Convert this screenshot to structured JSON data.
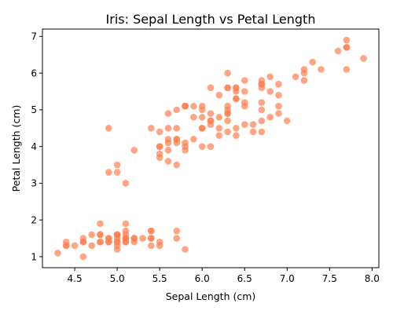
{
  "chart_data": {
    "type": "scatter",
    "title": "Iris: Sepal Length vs Petal Length",
    "xlabel": "Sepal Length (cm)",
    "ylabel": "Petal Length (cm)",
    "xlim": [
      4.12,
      8.08
    ],
    "ylim": [
      0.7,
      7.2
    ],
    "xticks": [
      "4.5",
      "5.0",
      "5.5",
      "6.0",
      "6.5",
      "7.0",
      "7.5",
      "8.0"
    ],
    "yticks": [
      "1",
      "2",
      "3",
      "4",
      "5",
      "6",
      "7"
    ],
    "grid": false,
    "marker_color": "#ff7f50",
    "marker_opacity": 0.7,
    "series": [
      {
        "points": [
          [
            5.1,
            1.4
          ],
          [
            4.9,
            1.4
          ],
          [
            4.7,
            1.3
          ],
          [
            4.6,
            1.5
          ],
          [
            5.0,
            1.4
          ],
          [
            5.4,
            1.7
          ],
          [
            4.6,
            1.4
          ],
          [
            5.0,
            1.5
          ],
          [
            4.4,
            1.4
          ],
          [
            4.9,
            1.5
          ],
          [
            5.4,
            1.5
          ],
          [
            4.8,
            1.6
          ],
          [
            4.8,
            1.4
          ],
          [
            4.3,
            1.1
          ],
          [
            5.8,
            1.2
          ],
          [
            5.7,
            1.5
          ],
          [
            5.4,
            1.3
          ],
          [
            5.1,
            1.4
          ],
          [
            5.7,
            1.7
          ],
          [
            5.1,
            1.5
          ],
          [
            5.4,
            1.7
          ],
          [
            5.1,
            1.5
          ],
          [
            4.6,
            1.0
          ],
          [
            5.1,
            1.7
          ],
          [
            4.8,
            1.9
          ],
          [
            5.0,
            1.6
          ],
          [
            5.0,
            1.6
          ],
          [
            5.2,
            1.5
          ],
          [
            5.2,
            1.4
          ],
          [
            4.7,
            1.6
          ],
          [
            4.8,
            1.6
          ],
          [
            5.4,
            1.5
          ],
          [
            5.2,
            1.5
          ],
          [
            5.5,
            1.4
          ],
          [
            4.9,
            1.5
          ],
          [
            5.0,
            1.2
          ],
          [
            5.5,
            1.3
          ],
          [
            4.9,
            1.4
          ],
          [
            4.4,
            1.3
          ],
          [
            5.1,
            1.5
          ],
          [
            5.0,
            1.3
          ],
          [
            4.5,
            1.3
          ],
          [
            4.4,
            1.3
          ],
          [
            5.0,
            1.6
          ],
          [
            5.1,
            1.9
          ],
          [
            4.8,
            1.4
          ],
          [
            5.1,
            1.6
          ],
          [
            4.6,
            1.4
          ],
          [
            5.3,
            1.5
          ],
          [
            5.0,
            1.4
          ],
          [
            7.0,
            4.7
          ],
          [
            6.4,
            4.5
          ],
          [
            6.9,
            4.9
          ],
          [
            5.5,
            4.0
          ],
          [
            6.5,
            4.6
          ],
          [
            5.7,
            4.5
          ],
          [
            6.3,
            4.7
          ],
          [
            4.9,
            3.3
          ],
          [
            6.6,
            4.6
          ],
          [
            5.2,
            3.9
          ],
          [
            5.0,
            3.5
          ],
          [
            5.9,
            4.2
          ],
          [
            6.0,
            4.0
          ],
          [
            6.1,
            4.7
          ],
          [
            5.6,
            3.6
          ],
          [
            6.7,
            4.4
          ],
          [
            5.6,
            4.5
          ],
          [
            5.8,
            4.1
          ],
          [
            6.2,
            4.5
          ],
          [
            5.6,
            3.9
          ],
          [
            5.9,
            4.8
          ],
          [
            6.1,
            4.0
          ],
          [
            6.3,
            4.9
          ],
          [
            6.1,
            4.7
          ],
          [
            6.4,
            4.3
          ],
          [
            6.6,
            4.4
          ],
          [
            6.8,
            4.8
          ],
          [
            6.7,
            5.0
          ],
          [
            6.0,
            4.5
          ],
          [
            5.7,
            3.5
          ],
          [
            5.5,
            3.8
          ],
          [
            5.5,
            3.7
          ],
          [
            5.8,
            3.9
          ],
          [
            6.0,
            5.1
          ],
          [
            5.4,
            4.5
          ],
          [
            6.0,
            4.5
          ],
          [
            6.7,
            4.7
          ],
          [
            6.3,
            4.4
          ],
          [
            5.6,
            4.1
          ],
          [
            5.5,
            4.0
          ],
          [
            5.5,
            4.4
          ],
          [
            6.1,
            4.6
          ],
          [
            5.8,
            4.0
          ],
          [
            5.0,
            3.3
          ],
          [
            5.6,
            4.2
          ],
          [
            5.7,
            4.2
          ],
          [
            5.7,
            4.2
          ],
          [
            6.2,
            4.3
          ],
          [
            5.1,
            3.0
          ],
          [
            5.7,
            4.1
          ],
          [
            6.3,
            6.0
          ],
          [
            5.8,
            5.1
          ],
          [
            7.1,
            5.9
          ],
          [
            6.3,
            5.6
          ],
          [
            6.5,
            5.8
          ],
          [
            7.6,
            6.6
          ],
          [
            4.9,
            4.5
          ],
          [
            7.3,
            6.3
          ],
          [
            6.7,
            5.8
          ],
          [
            7.2,
            6.1
          ],
          [
            6.5,
            5.1
          ],
          [
            6.4,
            5.3
          ],
          [
            6.8,
            5.5
          ],
          [
            5.7,
            5.0
          ],
          [
            5.8,
            5.1
          ],
          [
            6.4,
            5.3
          ],
          [
            6.5,
            5.5
          ],
          [
            7.7,
            6.7
          ],
          [
            7.7,
            6.9
          ],
          [
            6.0,
            5.0
          ],
          [
            6.9,
            5.7
          ],
          [
            5.6,
            4.9
          ],
          [
            7.7,
            6.7
          ],
          [
            6.3,
            4.9
          ],
          [
            6.7,
            5.7
          ],
          [
            7.2,
            6.0
          ],
          [
            6.2,
            4.8
          ],
          [
            6.1,
            4.9
          ],
          [
            6.4,
            5.6
          ],
          [
            7.2,
            5.8
          ],
          [
            7.4,
            6.1
          ],
          [
            7.9,
            6.4
          ],
          [
            6.4,
            5.6
          ],
          [
            6.3,
            5.1
          ],
          [
            6.1,
            5.6
          ],
          [
            7.7,
            6.1
          ],
          [
            6.3,
            5.6
          ],
          [
            6.4,
            5.5
          ],
          [
            6.0,
            4.8
          ],
          [
            6.9,
            5.4
          ],
          [
            6.7,
            5.6
          ],
          [
            6.9,
            5.1
          ],
          [
            5.8,
            5.1
          ],
          [
            6.8,
            5.9
          ],
          [
            6.7,
            5.7
          ],
          [
            6.7,
            5.2
          ],
          [
            6.3,
            5.0
          ],
          [
            6.5,
            5.2
          ],
          [
            6.2,
            5.4
          ],
          [
            5.9,
            5.1
          ]
        ]
      }
    ]
  }
}
